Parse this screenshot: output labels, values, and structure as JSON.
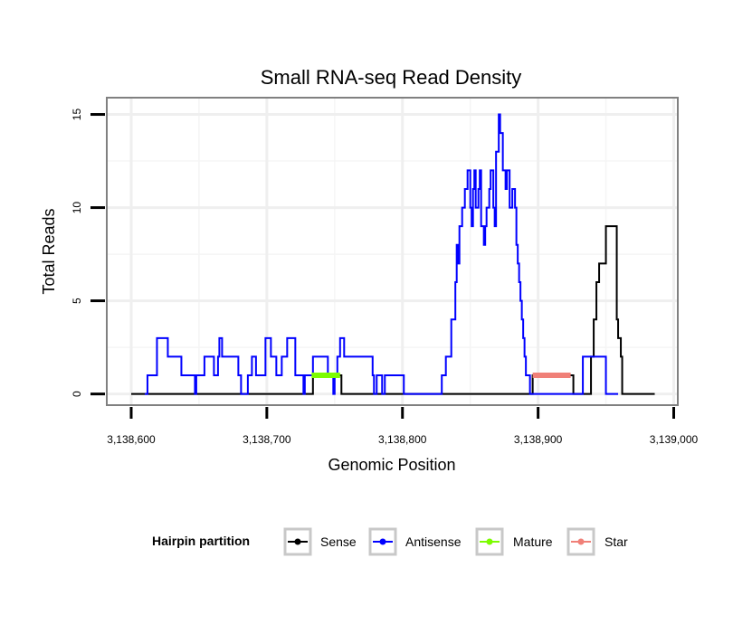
{
  "chart_data": {
    "type": "line",
    "title": "Small RNA-seq Read Density",
    "xlabel": "Genomic Position",
    "ylabel": "Total Reads",
    "xlim": [
      3138582,
      3139003
    ],
    "ylim": [
      -0.6,
      15.9
    ],
    "x_ticks": [
      3138600,
      3138700,
      3138800,
      3138900,
      3139000
    ],
    "x_tick_labels": [
      "3,138,600",
      "3,138,700",
      "3,138,800",
      "3,138,900",
      "3,139,000"
    ],
    "y_ticks": [
      0,
      5,
      10,
      15
    ],
    "y_tick_labels": [
      "0",
      "5",
      "10",
      "15"
    ],
    "grid": true,
    "legend": {
      "title": "Hairpin partition",
      "position": "bottom",
      "entries": [
        {
          "label": "Sense",
          "color": "#000000"
        },
        {
          "label": "Antisense",
          "color": "#0000ff"
        },
        {
          "label": "Mature",
          "color": "#7cfc00"
        },
        {
          "label": "Star",
          "color": "#f08078"
        }
      ]
    },
    "series": [
      {
        "name": "Sense",
        "color": "#000000",
        "step": true,
        "x": [
          3138600,
          3138733,
          3138734,
          3138754,
          3138755,
          3138894,
          3138896,
          3138924,
          3138926,
          3138938,
          3138939,
          3138941,
          3138943,
          3138945,
          3138949,
          3138950,
          3138957,
          3138958,
          3138959,
          3138961,
          3138962,
          3138986
        ],
        "y": [
          0,
          0,
          1,
          1,
          0,
          0,
          1,
          1,
          0,
          0,
          2,
          4,
          6,
          7,
          7,
          9,
          9,
          4,
          3,
          2,
          0,
          0
        ]
      },
      {
        "name": "Antisense",
        "color": "#0000ff",
        "step": true,
        "x": [
          3138610,
          3138612,
          3138619,
          3138627,
          3138637,
          3138645,
          3138647,
          3138648,
          3138654,
          3138661,
          3138664,
          3138665,
          3138667,
          3138679,
          3138681,
          3138686,
          3138689,
          3138692,
          3138699,
          3138703,
          3138707,
          3138709,
          3138711,
          3138715,
          3138721,
          3138727,
          3138728,
          3138734,
          3138745,
          3138749,
          3138750,
          3138752,
          3138754,
          3138757,
          3138759,
          3138761,
          3138763,
          3138778,
          3138779,
          3138781,
          3138785,
          3138787,
          3138789,
          3138801,
          3138827,
          3138829,
          3138832,
          3138836,
          3138839,
          3138840,
          3138841,
          3138842,
          3138844,
          3138846,
          3138848,
          3138850,
          3138851,
          3138852,
          3138853,
          3138854,
          3138856,
          3138857,
          3138858,
          3138860,
          3138861,
          3138862,
          3138864,
          3138865,
          3138867,
          3138868,
          3138869,
          3138871,
          3138872,
          3138874,
          3138876,
          3138877,
          3138879,
          3138881,
          3138883,
          3138884,
          3138885,
          3138886,
          3138887,
          3138888,
          3138889,
          3138890,
          3138891,
          3138892,
          3138894,
          3138896,
          3138898,
          3138899,
          3138902,
          3138904,
          3138906,
          3138911,
          3138915,
          3138919,
          3138925,
          3138929,
          3138933,
          3138938,
          3138941,
          3138946,
          3138950,
          3138957,
          3138959
        ],
        "y": [
          0,
          1,
          3,
          2,
          1,
          1,
          0,
          1,
          2,
          1,
          2,
          3,
          2,
          1,
          0,
          1,
          2,
          1,
          3,
          2,
          1,
          1,
          2,
          3,
          1,
          0,
          1,
          2,
          1,
          0,
          1,
          2,
          3,
          2,
          2,
          2,
          2,
          1,
          0,
          1,
          0,
          1,
          1,
          0,
          0,
          1,
          2,
          4,
          6,
          8,
          7,
          9,
          10,
          11,
          12,
          10,
          9,
          11,
          12,
          10,
          11,
          12,
          9,
          8,
          9,
          10,
          11,
          12,
          10,
          9,
          13,
          15,
          14,
          12,
          11,
          12,
          10,
          11,
          10,
          8,
          7,
          6,
          5,
          4,
          3,
          2,
          1,
          1,
          0,
          0,
          0,
          0,
          0,
          0,
          0,
          0,
          0,
          0,
          0,
          0,
          2,
          2,
          2,
          2,
          0,
          0,
          0
        ]
      },
      {
        "name": "Mature",
        "color": "#7cfc00",
        "step": false,
        "x": [
          3138733,
          3138754
        ],
        "y": [
          1,
          1
        ]
      },
      {
        "name": "Star",
        "color": "#f08078",
        "step": false,
        "x": [
          3138896,
          3138924
        ],
        "y": [
          1,
          1
        ]
      }
    ]
  }
}
